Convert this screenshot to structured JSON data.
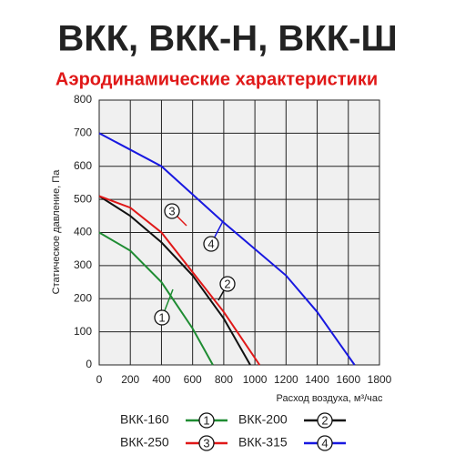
{
  "chart_data": {
    "type": "line",
    "title": "ВКК, ВКК-Н, ВКК-Ш",
    "subtitle": "Аэродинамические характеристики",
    "x_label": "Расход воздуха, м³/час",
    "y_label": "Статическое давление, Па",
    "xlim": [
      0,
      1800
    ],
    "xticks": [
      0,
      200,
      400,
      600,
      800,
      1000,
      1200,
      1400,
      1600,
      1800
    ],
    "ylim": [
      0,
      800
    ],
    "yticks": [
      0,
      100,
      200,
      300,
      400,
      500,
      600,
      700,
      800
    ],
    "grid": true,
    "series": [
      {
        "name": "ВКК-160",
        "label": "1",
        "color": "#1e8c32",
        "x": [
          0,
          200,
          400,
          600,
          730
        ],
        "values": [
          400,
          345,
          250,
          110,
          0
        ]
      },
      {
        "name": "ВКК-200",
        "label": "2",
        "color": "#111111",
        "x": [
          0,
          200,
          400,
          600,
          800,
          970
        ],
        "values": [
          510,
          450,
          370,
          270,
          140,
          0
        ]
      },
      {
        "name": "ВКК-250",
        "label": "3",
        "color": "#e01818",
        "x": [
          0,
          200,
          400,
          600,
          800,
          1030
        ],
        "values": [
          510,
          475,
          400,
          280,
          160,
          0
        ]
      },
      {
        "name": "ВКК-315",
        "label": "4",
        "color": "#1818e0",
        "x": [
          0,
          400,
          800,
          1200,
          1400,
          1550,
          1640
        ],
        "values": [
          700,
          600,
          430,
          270,
          160,
          60,
          0
        ]
      }
    ]
  }
}
